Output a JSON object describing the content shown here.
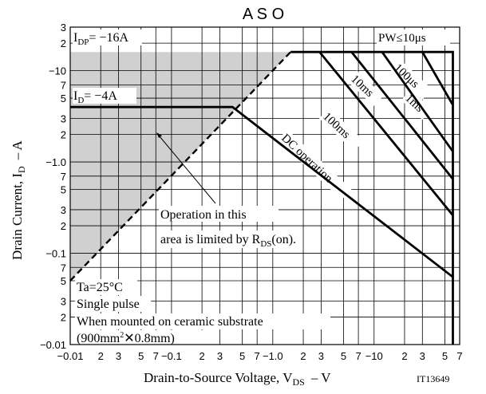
{
  "chart_data": {
    "type": "line",
    "title": "A S O",
    "xlabel_main": "Drain-to-Source Voltage, V",
    "xlabel_sub": "DS",
    "xlabel_unit": "–  V",
    "ylabel_main": "Drain Current, I",
    "ylabel_sub": "D",
    "ylabel_unit": "–  A",
    "figure_code": "IT13649",
    "x_scale": "log",
    "y_scale": "log",
    "xlim": [
      -0.01,
      -70
    ],
    "ylim": [
      -0.01,
      -30
    ],
    "grid": true,
    "x_tick_labels": [
      {
        "v": 0.01,
        "t": "−0.01"
      },
      {
        "v": 0.02,
        "t": "2"
      },
      {
        "v": 0.03,
        "t": "3"
      },
      {
        "v": 0.05,
        "t": "5"
      },
      {
        "v": 0.07,
        "t": "7"
      },
      {
        "v": 0.1,
        "t": "−0.1"
      },
      {
        "v": 0.2,
        "t": "2"
      },
      {
        "v": 0.3,
        "t": "3"
      },
      {
        "v": 0.5,
        "t": "5"
      },
      {
        "v": 0.7,
        "t": "7"
      },
      {
        "v": 1,
        "t": "−1.0"
      },
      {
        "v": 2,
        "t": "2"
      },
      {
        "v": 3,
        "t": "3"
      },
      {
        "v": 5,
        "t": "5"
      },
      {
        "v": 7,
        "t": "7"
      },
      {
        "v": 10,
        "t": "−10"
      },
      {
        "v": 20,
        "t": "2"
      },
      {
        "v": 30,
        "t": "3"
      },
      {
        "v": 50,
        "t": "5"
      },
      {
        "v": 70,
        "t": "7"
      }
    ],
    "y_tick_labels": [
      {
        "v": 0.01,
        "t": "−0.01"
      },
      {
        "v": 0.02,
        "t": "2"
      },
      {
        "v": 0.03,
        "t": "3"
      },
      {
        "v": 0.05,
        "t": "5"
      },
      {
        "v": 0.07,
        "t": "7"
      },
      {
        "v": 0.1,
        "t": "−0.1"
      },
      {
        "v": 0.2,
        "t": "2"
      },
      {
        "v": 0.3,
        "t": "3"
      },
      {
        "v": 0.5,
        "t": "5"
      },
      {
        "v": 0.7,
        "t": "7"
      },
      {
        "v": 1,
        "t": "−1.0"
      },
      {
        "v": 2,
        "t": "2"
      },
      {
        "v": 3,
        "t": "3"
      },
      {
        "v": 5,
        "t": "5"
      },
      {
        "v": 7,
        "t": "7"
      },
      {
        "v": 10,
        "t": "−10"
      },
      {
        "v": 20,
        "t": "2"
      },
      {
        "v": 30,
        "t": "3"
      }
    ],
    "series": [
      {
        "name": "RDS(on) limit",
        "style": "dashed",
        "x": [
          -0.01,
          -1.5
        ],
        "y": [
          -0.05,
          -16
        ]
      },
      {
        "name": "100μs",
        "x": [
          -30,
          -60
        ],
        "y": [
          -16,
          -4.2
        ]
      },
      {
        "name": "1ms",
        "x": [
          -12,
          -60
        ],
        "y": [
          -16,
          -1.3
        ]
      },
      {
        "name": "10ms",
        "x": [
          -6,
          -60
        ],
        "y": [
          -16,
          -0.65
        ]
      },
      {
        "name": "100ms",
        "x": [
          -2.9,
          -60
        ],
        "y": [
          -16,
          -0.26
        ]
      },
      {
        "name": "DC operation",
        "x": [
          -0.01,
          -0.4,
          -60
        ],
        "y": [
          -4,
          -4,
          -0.055
        ]
      },
      {
        "name": "PW≤10μs",
        "x": [
          -1.5,
          -60,
          -60
        ],
        "y": [
          -16,
          -16,
          -0.01
        ]
      }
    ],
    "annotations": {
      "idp": {
        "main": "I",
        "sub": "DP",
        "rest": "= −16A"
      },
      "id": {
        "main": "I",
        "sub": "D",
        "rest": "= −4A"
      },
      "pw": "PW≤10μs",
      "label_100us": "100μs",
      "label_1ms": "1ms",
      "label_10ms": "10ms",
      "label_100ms": "100ms",
      "label_dc": "DC operation",
      "op_line1": "Operation in this",
      "op_line2_a": "area is limited by R",
      "op_line2_sub": "DS",
      "op_line2_b": "(on).",
      "cond_ta": "Ta=25°C",
      "cond_pulse": "Single pulse",
      "cond_mount": "When mounted on ceramic substrate",
      "cond_size_a": "(900mm",
      "cond_size_sup": "2",
      "cond_size_b": "✕0.8mm)"
    }
  }
}
